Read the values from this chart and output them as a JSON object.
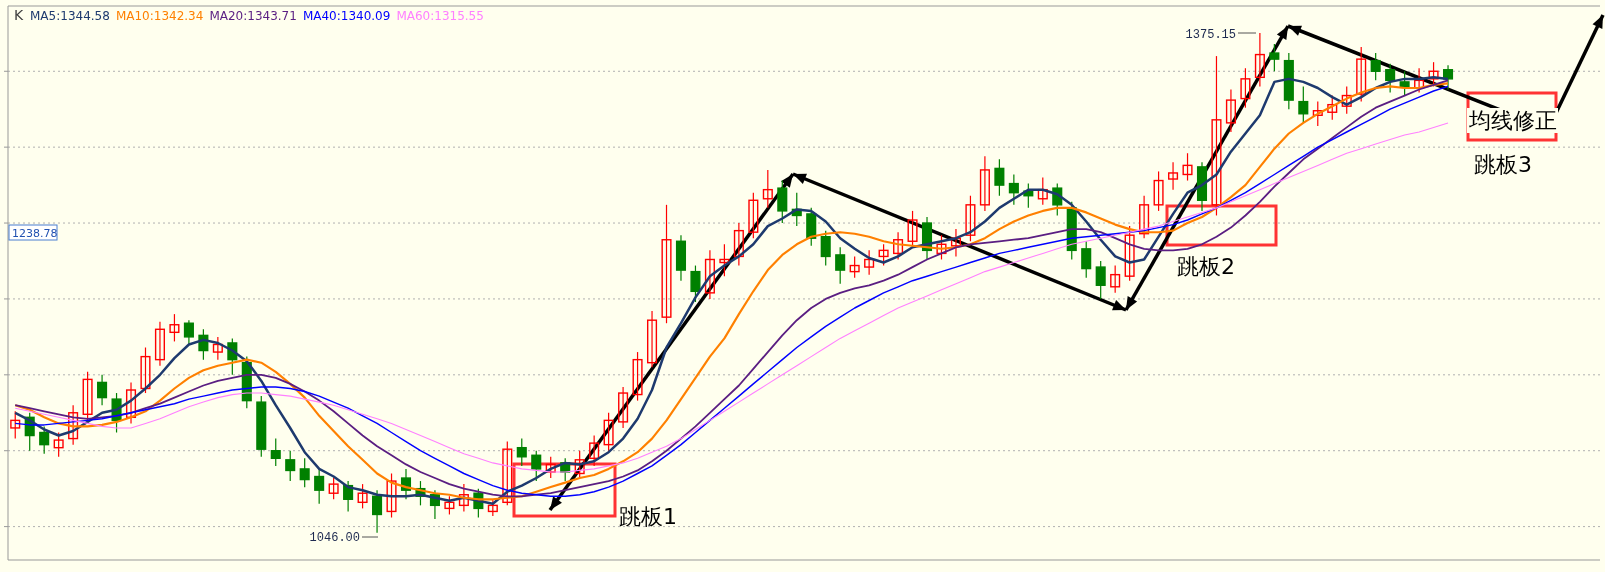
{
  "chart_data": {
    "type": "candlestick",
    "categories": [
      null,
      null,
      null,
      null,
      null,
      null,
      null,
      null,
      null,
      null,
      null,
      null,
      null,
      null,
      null,
      null,
      null,
      null,
      null,
      null,
      null,
      null,
      null,
      null,
      null,
      null,
      null,
      null,
      null,
      null,
      null,
      null,
      null,
      null,
      null,
      null,
      null,
      null,
      null,
      null,
      null,
      null,
      null,
      null,
      null,
      null,
      null,
      null,
      null,
      null,
      null,
      null,
      null,
      null,
      null,
      null,
      null,
      null,
      null,
      null,
      null,
      null,
      null,
      null,
      null,
      null,
      null,
      null,
      null,
      null,
      null,
      null,
      null,
      null,
      null,
      null,
      null,
      null,
      null,
      null,
      null,
      null,
      null,
      null,
      null,
      null,
      null,
      null,
      null,
      null,
      null,
      null,
      null,
      null,
      null,
      null,
      null,
      null,
      null,
      null
    ],
    "colors": [
      "#ff0000",
      "#008000",
      "#008000",
      "#ff0000",
      "#ff0000",
      "#ff0000",
      "#008000",
      "#008000",
      "#ff0000",
      "#ff0000",
      "#ff0000",
      "#ff0000",
      "#008000",
      "#008000",
      "#ff0000",
      "#008000",
      "#008000",
      "#008000",
      "#008000",
      "#008000",
      "#008000",
      "#008000",
      "#ff0000",
      "#008000",
      "#ff0000",
      "#008000",
      "#ff0000",
      "#008000",
      "#008000",
      "#008000",
      "#ff0000",
      "#ff0000",
      "#008000",
      "#ff0000",
      "#ff0000",
      "#008000",
      "#008000",
      "#ff0000",
      "#008000",
      "#ff0000",
      "#ff0000",
      "#ff0000",
      "#ff0000",
      "#ff0000",
      "#ff0000",
      "#ff0000",
      "#008000",
      "#008000",
      "#ff0000",
      "#ff0000",
      "#ff0000",
      "#ff0000",
      "#ff0000",
      "#008000",
      "#008000",
      "#008000",
      "#008000",
      "#008000",
      "#ff0000",
      "#ff0000",
      "#ff0000",
      "#ff0000",
      "#ff0000",
      "#008000",
      "#ff0000",
      "#ff0000",
      "#ff0000",
      "#ff0000",
      "#008000",
      "#008000",
      "#008000",
      "#ff0000",
      "#008000",
      "#008000",
      "#008000",
      "#008000",
      "#ff0000",
      "#ff0000",
      "#ff0000",
      "#ff0000",
      "#ff0000",
      "#ff0000",
      "#008000",
      "#ff0000",
      "#ff0000",
      "#ff0000",
      "#ff0000",
      "#008000",
      "#008000",
      "#008000",
      "#ff0000",
      "#ff0000",
      "#ff0000",
      "#ff0000",
      "#008000",
      "#008000",
      "#008000",
      "#ff0000",
      "#ff0000",
      "#008000"
    ],
    "ohlc": [
      [
        1115,
        1126,
        1108,
        1120
      ],
      [
        1122,
        1125,
        1100,
        1110
      ],
      [
        1112,
        1116,
        1098,
        1104
      ],
      [
        1102,
        1112,
        1096,
        1107
      ],
      [
        1108,
        1130,
        1104,
        1125
      ],
      [
        1124,
        1152,
        1120,
        1147
      ],
      [
        1145,
        1150,
        1130,
        1135
      ],
      [
        1134,
        1138,
        1112,
        1120
      ],
      [
        1122,
        1145,
        1118,
        1140
      ],
      [
        1141,
        1168,
        1138,
        1162
      ],
      [
        1160,
        1185,
        1156,
        1180
      ],
      [
        1178,
        1190,
        1172,
        1183
      ],
      [
        1184,
        1186,
        1170,
        1175
      ],
      [
        1176,
        1180,
        1160,
        1166
      ],
      [
        1165,
        1175,
        1160,
        1170
      ],
      [
        1171,
        1174,
        1150,
        1160
      ],
      [
        1158,
        1162,
        1128,
        1133
      ],
      [
        1132,
        1136,
        1096,
        1101
      ],
      [
        1100,
        1108,
        1090,
        1095
      ],
      [
        1094,
        1100,
        1080,
        1087
      ],
      [
        1088,
        1095,
        1076,
        1081
      ],
      [
        1083,
        1088,
        1065,
        1074
      ],
      [
        1072,
        1082,
        1068,
        1078
      ],
      [
        1077,
        1080,
        1060,
        1068
      ],
      [
        1066,
        1078,
        1062,
        1072
      ],
      [
        1070,
        1074,
        1046,
        1058
      ],
      [
        1060,
        1085,
        1056,
        1080
      ],
      [
        1082,
        1088,
        1068,
        1074
      ],
      [
        1075,
        1080,
        1064,
        1070
      ],
      [
        1071,
        1074,
        1055,
        1064
      ],
      [
        1062,
        1070,
        1058,
        1066
      ],
      [
        1064,
        1078,
        1060,
        1071
      ],
      [
        1072,
        1075,
        1056,
        1062
      ],
      [
        1060,
        1068,
        1057,
        1064
      ],
      [
        1066,
        1106,
        1064,
        1101
      ],
      [
        1102,
        1108,
        1090,
        1096
      ],
      [
        1097,
        1100,
        1080,
        1088
      ],
      [
        1086,
        1096,
        1082,
        1091
      ],
      [
        1092,
        1095,
        1080,
        1086
      ],
      [
        1085,
        1100,
        1082,
        1094
      ],
      [
        1095,
        1110,
        1090,
        1105
      ],
      [
        1104,
        1125,
        1100,
        1120
      ],
      [
        1119,
        1142,
        1115,
        1138
      ],
      [
        1137,
        1165,
        1133,
        1160
      ],
      [
        1158,
        1192,
        1155,
        1186
      ],
      [
        1188,
        1262,
        1184,
        1239
      ],
      [
        1238,
        1242,
        1212,
        1219
      ],
      [
        1218,
        1222,
        1198,
        1205
      ],
      [
        1204,
        1232,
        1200,
        1226
      ],
      [
        1224,
        1236,
        1215,
        1226
      ],
      [
        1228,
        1250,
        1222,
        1245
      ],
      [
        1244,
        1270,
        1240,
        1265
      ],
      [
        1266,
        1285,
        1260,
        1272
      ],
      [
        1273,
        1278,
        1250,
        1258
      ],
      [
        1259,
        1270,
        1248,
        1255
      ],
      [
        1256,
        1260,
        1235,
        1240
      ],
      [
        1241,
        1245,
        1222,
        1228
      ],
      [
        1229,
        1234,
        1210,
        1219
      ],
      [
        1218,
        1228,
        1214,
        1222
      ],
      [
        1221,
        1232,
        1216,
        1226
      ],
      [
        1228,
        1236,
        1222,
        1232
      ],
      [
        1230,
        1244,
        1226,
        1239
      ],
      [
        1238,
        1258,
        1234,
        1252
      ],
      [
        1250,
        1254,
        1226,
        1232
      ],
      [
        1230,
        1242,
        1226,
        1236
      ],
      [
        1235,
        1246,
        1228,
        1240
      ],
      [
        1242,
        1268,
        1238,
        1262
      ],
      [
        1262,
        1294,
        1258,
        1285
      ],
      [
        1286,
        1292,
        1268,
        1275
      ],
      [
        1276,
        1282,
        1262,
        1270
      ],
      [
        1271,
        1276,
        1260,
        1268
      ],
      [
        1266,
        1280,
        1262,
        1272
      ],
      [
        1273,
        1276,
        1255,
        1262
      ],
      [
        1260,
        1264,
        1226,
        1232
      ],
      [
        1233,
        1238,
        1214,
        1220
      ],
      [
        1221,
        1225,
        1200,
        1209
      ],
      [
        1208,
        1222,
        1204,
        1216
      ],
      [
        1215,
        1248,
        1212,
        1242
      ],
      [
        1243,
        1268,
        1240,
        1262
      ],
      [
        1262,
        1284,
        1258,
        1278
      ],
      [
        1279,
        1290,
        1272,
        1283
      ],
      [
        1282,
        1296,
        1278,
        1288
      ],
      [
        1287,
        1290,
        1258,
        1265
      ],
      [
        1262,
        1360,
        1255,
        1318
      ],
      [
        1316,
        1338,
        1310,
        1331
      ],
      [
        1332,
        1352,
        1326,
        1345
      ],
      [
        1346,
        1375.15,
        1340,
        1361
      ],
      [
        1362,
        1368,
        1350,
        1358
      ],
      [
        1357,
        1362,
        1325,
        1331
      ],
      [
        1330,
        1340,
        1316,
        1322
      ],
      [
        1321,
        1330,
        1314,
        1324
      ],
      [
        1323,
        1334,
        1318,
        1328
      ],
      [
        1327,
        1340,
        1322,
        1334
      ],
      [
        1335,
        1366,
        1330,
        1358
      ],
      [
        1357,
        1362,
        1344,
        1350
      ],
      [
        1351,
        1355,
        1336,
        1344
      ],
      [
        1343,
        1350,
        1334,
        1340
      ],
      [
        1339,
        1352,
        1336,
        1344
      ],
      [
        1345,
        1356,
        1340,
        1350
      ],
      [
        1351,
        1354,
        1338,
        1345
      ]
    ],
    "series": [
      {
        "name": "MA5:1344.58",
        "type": "line",
        "color": "#1e3a6e",
        "values": [
          1125,
          1120,
          1114,
          1110,
          1113,
          1119,
          1125,
          1127,
          1133,
          1141,
          1150,
          1161,
          1170,
          1173,
          1171,
          1166,
          1159,
          1146,
          1130,
          1115,
          1099,
          1088,
          1083,
          1076,
          1074,
          1071,
          1070,
          1070,
          1071,
          1069,
          1067,
          1069,
          1067,
          1065,
          1073,
          1077,
          1082,
          1088,
          1092,
          1091,
          1093,
          1099,
          1108,
          1121,
          1140,
          1168,
          1184,
          1201,
          1215,
          1222,
          1228,
          1236,
          1248,
          1253,
          1259,
          1258,
          1251,
          1240,
          1233,
          1227,
          1224,
          1228,
          1234,
          1236,
          1238,
          1240,
          1244,
          1251,
          1260,
          1266,
          1272,
          1272,
          1269,
          1262,
          1251,
          1239,
          1228,
          1224,
          1226,
          1241,
          1256,
          1270,
          1275,
          1282,
          1297,
          1309,
          1321,
          1343,
          1345,
          1343,
          1339,
          1333,
          1328,
          1333,
          1339,
          1343,
          1345,
          1345,
          1346,
          1345
        ]
      },
      {
        "name": "MA10:1342.34",
        "type": "line",
        "color": "#ff8000",
        "values": [
          1130,
          1127,
          1122,
          1118,
          1116,
          1116,
          1117,
          1119,
          1122,
          1126,
          1133,
          1141,
          1148,
          1153,
          1156,
          1158,
          1160,
          1158,
          1152,
          1144,
          1135,
          1123,
          1113,
          1103,
          1094,
          1085,
          1079,
          1076,
          1074,
          1072,
          1071,
          1069,
          1068,
          1068,
          1069,
          1070,
          1073,
          1076,
          1079,
          1082,
          1084,
          1088,
          1093,
          1099,
          1108,
          1120,
          1134,
          1148,
          1162,
          1174,
          1190,
          1205,
          1219,
          1229,
          1236,
          1241,
          1243,
          1244,
          1243,
          1241,
          1238,
          1236,
          1235,
          1234,
          1233,
          1234,
          1236,
          1240,
          1246,
          1251,
          1255,
          1258,
          1260,
          1260,
          1257,
          1253,
          1249,
          1246,
          1244,
          1244,
          1245,
          1250,
          1254,
          1260,
          1267,
          1275,
          1287,
          1299,
          1309,
          1316,
          1322,
          1327,
          1332,
          1336,
          1339,
          1340,
          1339,
          1339,
          1341,
          1342
        ]
      },
      {
        "name": "MA20:1343.71",
        "type": "line",
        "color": "#5a1e82",
        "values": [
          1130,
          1128,
          1126,
          1124,
          1122,
          1121,
          1122,
          1123,
          1125,
          1128,
          1131,
          1135,
          1139,
          1143,
          1146,
          1148,
          1150,
          1150,
          1148,
          1144,
          1139,
          1133,
          1126,
          1118,
          1110,
          1103,
          1097,
          1091,
          1086,
          1082,
          1078,
          1075,
          1073,
          1071,
          1070,
          1070,
          1071,
          1072,
          1074,
          1076,
          1078,
          1080,
          1083,
          1087,
          1093,
          1100,
          1108,
          1116,
          1125,
          1134,
          1143,
          1154,
          1165,
          1176,
          1186,
          1194,
          1200,
          1204,
          1207,
          1209,
          1212,
          1216,
          1221,
          1226,
          1230,
          1234,
          1236,
          1237,
          1238,
          1239,
          1240,
          1242,
          1244,
          1246,
          1246,
          1244,
          1240,
          1236,
          1233,
          1232,
          1232,
          1233,
          1236,
          1241,
          1247,
          1255,
          1264,
          1274,
          1283,
          1292,
          1299,
          1306,
          1313,
          1320,
          1326,
          1330,
          1334,
          1338,
          1341,
          1344
        ]
      },
      {
        "name": "MA40:1340.09",
        "type": "line",
        "color": "#0000ff",
        "values": [
          1118,
          1117,
          1117,
          1118,
          1119,
          1120,
          1121,
          1123,
          1125,
          1127,
          1129,
          1131,
          1134,
          1136,
          1138,
          1140,
          1141,
          1142,
          1142,
          1141,
          1139,
          1136,
          1132,
          1128,
          1123,
          1118,
          1112,
          1106,
          1100,
          1095,
          1090,
          1085,
          1081,
          1077,
          1074,
          1072,
          1071,
          1070,
          1070,
          1071,
          1073,
          1076,
          1080,
          1085,
          1090,
          1097,
          1104,
          1112,
          1120,
          1128,
          1136,
          1144,
          1152,
          1160,
          1168,
          1175,
          1182,
          1188,
          1194,
          1199,
          1204,
          1208,
          1212,
          1215,
          1218,
          1221,
          1224,
          1227,
          1230,
          1232,
          1234,
          1236,
          1238,
          1240,
          1241,
          1242,
          1243,
          1244,
          1245,
          1247,
          1249,
          1252,
          1256,
          1260,
          1265,
          1270,
          1276,
          1282,
          1288,
          1294,
          1300,
          1305,
          1310,
          1315,
          1320,
          1325,
          1329,
          1333,
          1337,
          1340
        ]
      },
      {
        "name": "MA60:1315.55",
        "type": "line",
        "color": "#ff80ff",
        "values": [
          1128,
          1126,
          1124,
          1122,
          1120,
          1118,
          1116,
          1115,
          1115,
          1118,
          1121,
          1125,
          1129,
          1132,
          1135,
          1137,
          1138,
          1138,
          1137,
          1136,
          1134,
          1132,
          1130,
          1127,
          1124,
          1121,
          1118,
          1114,
          1110,
          1106,
          1102,
          1098,
          1095,
          1092,
          1090,
          1088,
          1087,
          1086,
          1086,
          1087,
          1088,
          1090,
          1092,
          1095,
          1099,
          1103,
          1108,
          1114,
          1120,
          1126,
          1132,
          1138,
          1144,
          1150,
          1156,
          1162,
          1168,
          1174,
          1179,
          1184,
          1189,
          1194,
          1198,
          1202,
          1206,
          1210,
          1214,
          1218,
          1221,
          1224,
          1227,
          1230,
          1233,
          1236,
          1238,
          1240,
          1242,
          1244,
          1246,
          1248,
          1251,
          1254,
          1257,
          1260,
          1264,
          1268,
          1272,
          1276,
          1280,
          1284,
          1288,
          1292,
          1296,
          1299,
          1302,
          1305,
          1308,
          1310,
          1313,
          1316
        ]
      }
    ],
    "ylim": [
      1028,
      1393
    ],
    "yticks": [
      {
        "value": 1050,
        "label": null
      },
      {
        "value": 1100,
        "label": null
      },
      {
        "value": 1150,
        "label": null
      },
      {
        "value": 1200,
        "label": null
      },
      {
        "value": 1250,
        "label": null
      },
      {
        "value": 1300,
        "label": null
      },
      {
        "value": 1350,
        "label": null
      }
    ],
    "grid": "y",
    "legend": "top left",
    "annotations": [
      "K",
      "1375.15",
      "1046.00",
      "1238.78",
      "跳板1",
      "跳板2",
      "跳板3",
      "均线修正"
    ]
  }
}
